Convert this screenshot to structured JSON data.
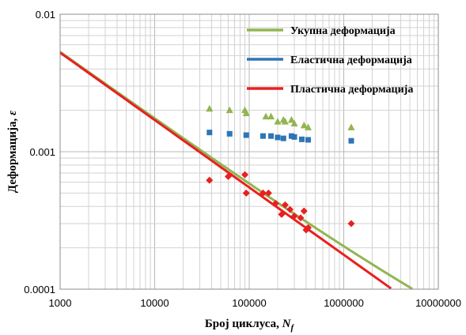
{
  "chart_data": {
    "type": "scatter",
    "xscale": "log",
    "yscale": "log",
    "xlim": [
      1000,
      10000000
    ],
    "ylim": [
      0.0001,
      0.01
    ],
    "xlabel_main": "Број циклуса, ",
    "xlabel_var": "N",
    "xlabel_sub": "f",
    "ylabel_main": "Деформација, ",
    "ylabel_var": "ε",
    "x_tick_labels": [
      "1000",
      "10000",
      "100000",
      "1000000",
      "10000000"
    ],
    "y_tick_labels": [
      "0.0001",
      "0.001",
      "0.01"
    ],
    "grid": true,
    "legend_position": "top-right",
    "series": [
      {
        "name": "Укупна деформација",
        "color": "#92b550",
        "marker": "triangle",
        "line": {
          "a": 0.000165,
          "b": -0.13,
          "c": 0.155,
          "d": -0.49
        },
        "points": [
          [
            38000,
            0.00205
          ],
          [
            62000,
            0.002
          ],
          [
            90000,
            0.002
          ],
          [
            93000,
            0.0019
          ],
          [
            150000,
            0.0018
          ],
          [
            170000,
            0.0018
          ],
          [
            200000,
            0.00165
          ],
          [
            230000,
            0.0017
          ],
          [
            240000,
            0.00165
          ],
          [
            280000,
            0.0017
          ],
          [
            300000,
            0.0016
          ],
          [
            380000,
            0.00155
          ],
          [
            420000,
            0.0015
          ],
          [
            1200000,
            0.0015
          ]
        ]
      },
      {
        "name": "Еластична деформација",
        "color": "#2e75b6",
        "marker": "square",
        "line": {
          "a": 0.000165,
          "b": -0.13
        },
        "points": [
          [
            38000,
            0.00138
          ],
          [
            62000,
            0.00135
          ],
          [
            93000,
            0.00132
          ],
          [
            140000,
            0.0013
          ],
          [
            170000,
            0.0013
          ],
          [
            200000,
            0.00127
          ],
          [
            230000,
            0.00125
          ],
          [
            280000,
            0.0013
          ],
          [
            300000,
            0.00128
          ],
          [
            360000,
            0.00123
          ],
          [
            420000,
            0.00122
          ],
          [
            1200000,
            0.0012
          ]
        ]
      },
      {
        "name": "Пластична деформација",
        "color": "#e82020",
        "marker": "diamond",
        "line": {
          "c": 0.155,
          "d": -0.49
        },
        "points": [
          [
            38000,
            0.00062
          ],
          [
            60000,
            0.00066
          ],
          [
            90000,
            0.00068
          ],
          [
            93000,
            0.0005
          ],
          [
            140000,
            0.0005
          ],
          [
            160000,
            0.0005
          ],
          [
            190000,
            0.00042
          ],
          [
            220000,
            0.00035
          ],
          [
            240000,
            0.00041
          ],
          [
            270000,
            0.00038
          ],
          [
            300000,
            0.00034
          ],
          [
            350000,
            0.00033
          ],
          [
            380000,
            0.00037
          ],
          [
            400000,
            0.00027
          ],
          [
            420000,
            0.00028
          ],
          [
            1200000,
            0.0003
          ]
        ]
      }
    ]
  }
}
